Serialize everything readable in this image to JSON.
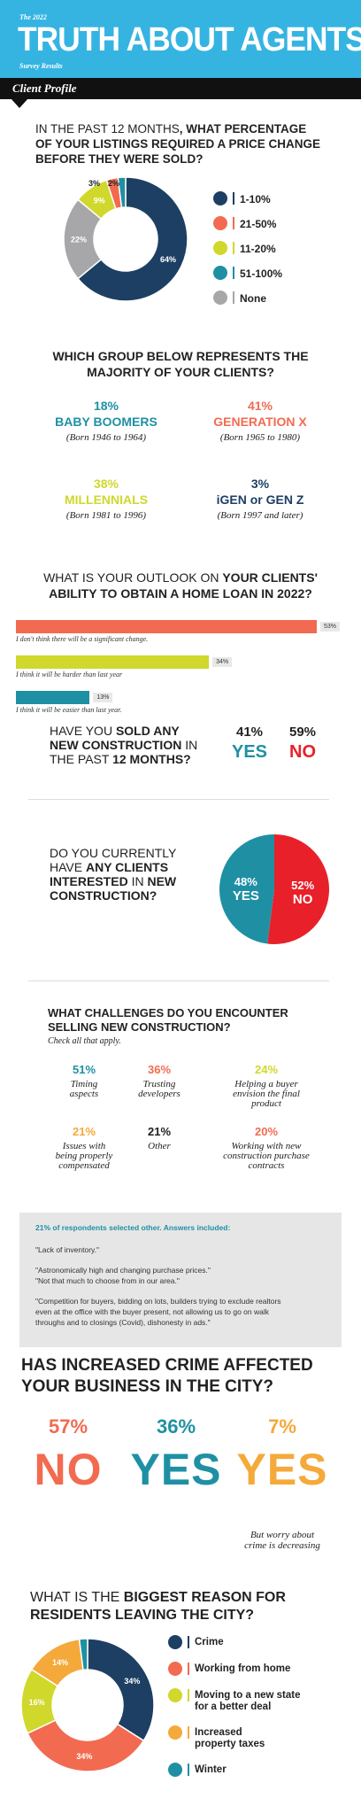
{
  "header": {
    "year": "The 2022",
    "title": "TRUTH ABOUT AGENTS",
    "subtitle": "Survey Results"
  },
  "section_label": "Client Profile",
  "q1": {
    "title_plain1": "IN THE PAST 12 MONTHS",
    "title_bold1": ", WHAT PERCENTAGE",
    "title_line2": "OF YOUR LISTINGS REQUIRED A PRICE CHANGE",
    "title_line3": "BEFORE THEY WERE SOLD?"
  },
  "q2": {
    "title_line1": "WHICH GROUP BELOW REPRESENTS THE",
    "title_line2": "MAJORITY OF YOUR CLIENTS?",
    "groups": [
      {
        "pct": "18%",
        "name": "BABY BOOMERS",
        "born": "(Born 1946 to 1964)",
        "color": "#1f90a4"
      },
      {
        "pct": "41%",
        "name": "GENERATION X",
        "born": "(Born 1965 to 1980)",
        "color": "#f26b50"
      },
      {
        "pct": "38%",
        "name": "MILLENNIALS",
        "born": "(Born 1981 to 1996)",
        "color": "#cfd82b"
      },
      {
        "pct": "3%",
        "name": "iGEN or GEN Z",
        "born": "(Born 1997 and later)",
        "color": "#1d3f63"
      }
    ]
  },
  "q3": {
    "title_plain1": "WHAT IS YOUR OUTLOOK ON ",
    "title_bold1": "YOUR CLIENTS'",
    "title_line2": "ABILITY TO OBTAIN A HOME LOAN IN 2022?"
  },
  "q4": {
    "line1_plain": "HAVE YOU ",
    "line1_bold": "SOLD ANY",
    "line2_bold": "NEW CONSTRUCTION",
    "line2_plain": " IN",
    "line3_plain": "THE PAST ",
    "line3_bold": "12 MONTHS?",
    "yes_pct": "41%",
    "no_pct": "59%",
    "yes_label": "YES",
    "no_label": "NO"
  },
  "q5": {
    "line1": "DO YOU CURRENTLY",
    "line2_plain": "HAVE ",
    "line2_bold": "ANY CLIENTS",
    "line3_bold": "INTERESTED",
    "line3_plain": " IN ",
    "line3_bold2": "NEW",
    "line4_bold": "CONSTRUCTION?"
  },
  "q6": {
    "title_line1": "WHAT CHALLENGES DO YOU ENCOUNTER",
    "title_line2": "SELLING NEW CONSTRUCTION?",
    "note": "Check all that apply.",
    "items": [
      {
        "pct": "51%",
        "lines": [
          "Timing",
          "aspects"
        ],
        "color": "#1f90a4"
      },
      {
        "pct": "36%",
        "lines": [
          "Trusting",
          "developers"
        ],
        "color": "#f26b50"
      },
      {
        "pct": "24%",
        "lines": [
          "Helping a buyer",
          "envision the final",
          "product"
        ],
        "color": "#cfd82b"
      },
      {
        "pct": "21%",
        "lines": [
          "Issues with",
          "being properly",
          "compensated"
        ],
        "color": "#f5a93a"
      },
      {
        "pct": "21%",
        "lines": [
          "Other"
        ],
        "color": "#222222"
      },
      {
        "pct": "20%",
        "lines": [
          "Working with new",
          "construction purchase",
          "contracts"
        ],
        "color": "#f26b50"
      }
    ]
  },
  "other_box": {
    "heading": "21% of respondents selected other. Answers included:",
    "quote1": "\"Lack of inventory.\"",
    "quote2a": "\"Astronomically high and changing purchase prices.\"",
    "quote2b": "\"Not that much to choose from in our area.\"",
    "quote3a": "\"Competition for buyers, bidding on lots, builders trying to exclude realtors",
    "quote3b": "even at the office with the buyer present, not allowing us to go on walk",
    "quote3c": "throughs and to closings (Covid), dishonesty in ads.\""
  },
  "q7": {
    "title_line1": "HAS INCREASED CRIME AFFECTED",
    "title_line2": "YOUR BUSINESS IN THE CITY?",
    "answers": [
      {
        "pct": "57%",
        "label": "NO",
        "color": "#f26b50"
      },
      {
        "pct": "36%",
        "label": "YES",
        "color": "#1f90a4"
      },
      {
        "pct": "7%",
        "label": "YES",
        "color": "#f5a93a"
      }
    ],
    "note_line1": "But worry about",
    "note_line2": "crime is decreasing"
  },
  "q8": {
    "title_plain1": "WHAT IS THE ",
    "title_bold1": "BIGGEST REASON FOR",
    "title_line2": "RESIDENTS LEAVING THE CITY?"
  },
  "chart_data": [
    {
      "type": "pie",
      "categories": [
        "1-10%",
        "21-50%",
        "11-20%",
        "51-100%",
        "None"
      ],
      "values": [
        64,
        3,
        9,
        2,
        22
      ],
      "labels": [
        "64%",
        "3%",
        "9%",
        "2%",
        "22%"
      ],
      "colors": [
        "#1d3f63",
        "#f26b50",
        "#cfd82b",
        "#1f90a4",
        "#a7a7a9"
      ],
      "legend_order": [
        0,
        1,
        2,
        3,
        4
      ],
      "slice_order": [
        0,
        4,
        2,
        1,
        3
      ],
      "legend": "right"
    },
    {
      "type": "bar",
      "orientation": "horizontal",
      "categories": [
        "I don't think there will be a significant change.",
        "I think it will be harder than last year",
        "I think it will be easier than last year."
      ],
      "values": [
        53,
        34,
        13
      ],
      "labels": [
        "53%",
        "34%",
        "13%"
      ],
      "colors": [
        "#f26b50",
        "#cfd82b",
        "#1f90a4"
      ],
      "xlim": [
        0,
        53
      ]
    },
    {
      "type": "pie",
      "categories": [
        "YES",
        "NO"
      ],
      "values": [
        48,
        52
      ],
      "labels": [
        "48%",
        "52%"
      ],
      "colors": [
        "#1f90a4",
        "#e8202a"
      ],
      "slice_order": [
        1,
        0
      ]
    },
    {
      "type": "pie",
      "categories": [
        "Crime",
        "Working from home",
        "Moving to a new state for a better deal",
        "Increased property taxes",
        "Winter"
      ],
      "values": [
        34,
        34,
        16,
        14,
        2
      ],
      "labels": [
        "34%",
        "34%",
        "16%",
        "14%",
        ""
      ],
      "colors": [
        "#1d3f63",
        "#f26b50",
        "#cfd82b",
        "#f5a93a",
        "#1f90a4"
      ],
      "legend_lines": [
        [
          "Crime"
        ],
        [
          "Working from home"
        ],
        [
          "Moving to a new state",
          "for a better deal"
        ],
        [
          "Increased",
          "property taxes"
        ],
        [
          "Winter"
        ]
      ],
      "legend": "right"
    }
  ]
}
